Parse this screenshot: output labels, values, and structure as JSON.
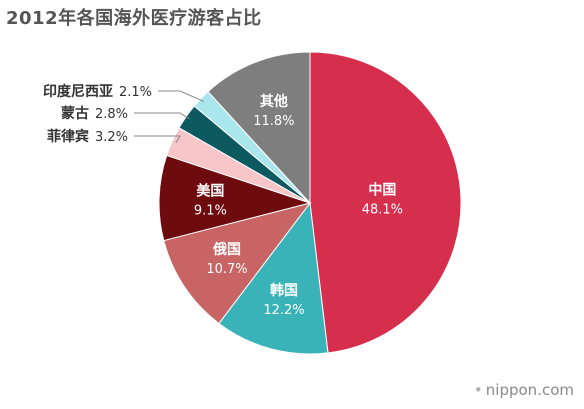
{
  "title": "2012年各国海外医疗游客占比",
  "brand": "nippon.com",
  "chart_data": {
    "type": "pie",
    "title": "2012年各国海外医疗游客占比",
    "slices": [
      {
        "name": "中国",
        "value": 48.1,
        "value_label": "48.1%",
        "color": "#d62f4e",
        "label": "inside",
        "text_color": "#ffffff"
      },
      {
        "name": "韩国",
        "value": 12.2,
        "value_label": "12.2%",
        "color": "#3ab3b8",
        "label": "inside",
        "text_color": "#ffffff"
      },
      {
        "name": "俄国",
        "value": 10.7,
        "value_label": "10.7%",
        "color": "#c96465",
        "label": "inside",
        "text_color": "#ffffff"
      },
      {
        "name": "美国",
        "value": 9.1,
        "value_label": "9.1%",
        "color": "#6e0b0e",
        "label": "inside",
        "text_color": "#ffffff"
      },
      {
        "name": "菲律宾",
        "value": 3.2,
        "value_label": "3.2%",
        "color": "#f7c6c9",
        "label": "outside",
        "text_color": "#333333"
      },
      {
        "name": "蒙古",
        "value": 2.8,
        "value_label": "2.8%",
        "color": "#0c5a60",
        "label": "outside",
        "text_color": "#333333"
      },
      {
        "name": "印度尼西亚",
        "value": 2.1,
        "value_label": "2.1%",
        "color": "#a9e7ec",
        "label": "outside",
        "text_color": "#333333"
      },
      {
        "name": "其他",
        "value": 11.8,
        "value_label": "11.8%",
        "color": "#7e7e7e",
        "label": "inside",
        "text_color": "#ffffff"
      }
    ]
  }
}
